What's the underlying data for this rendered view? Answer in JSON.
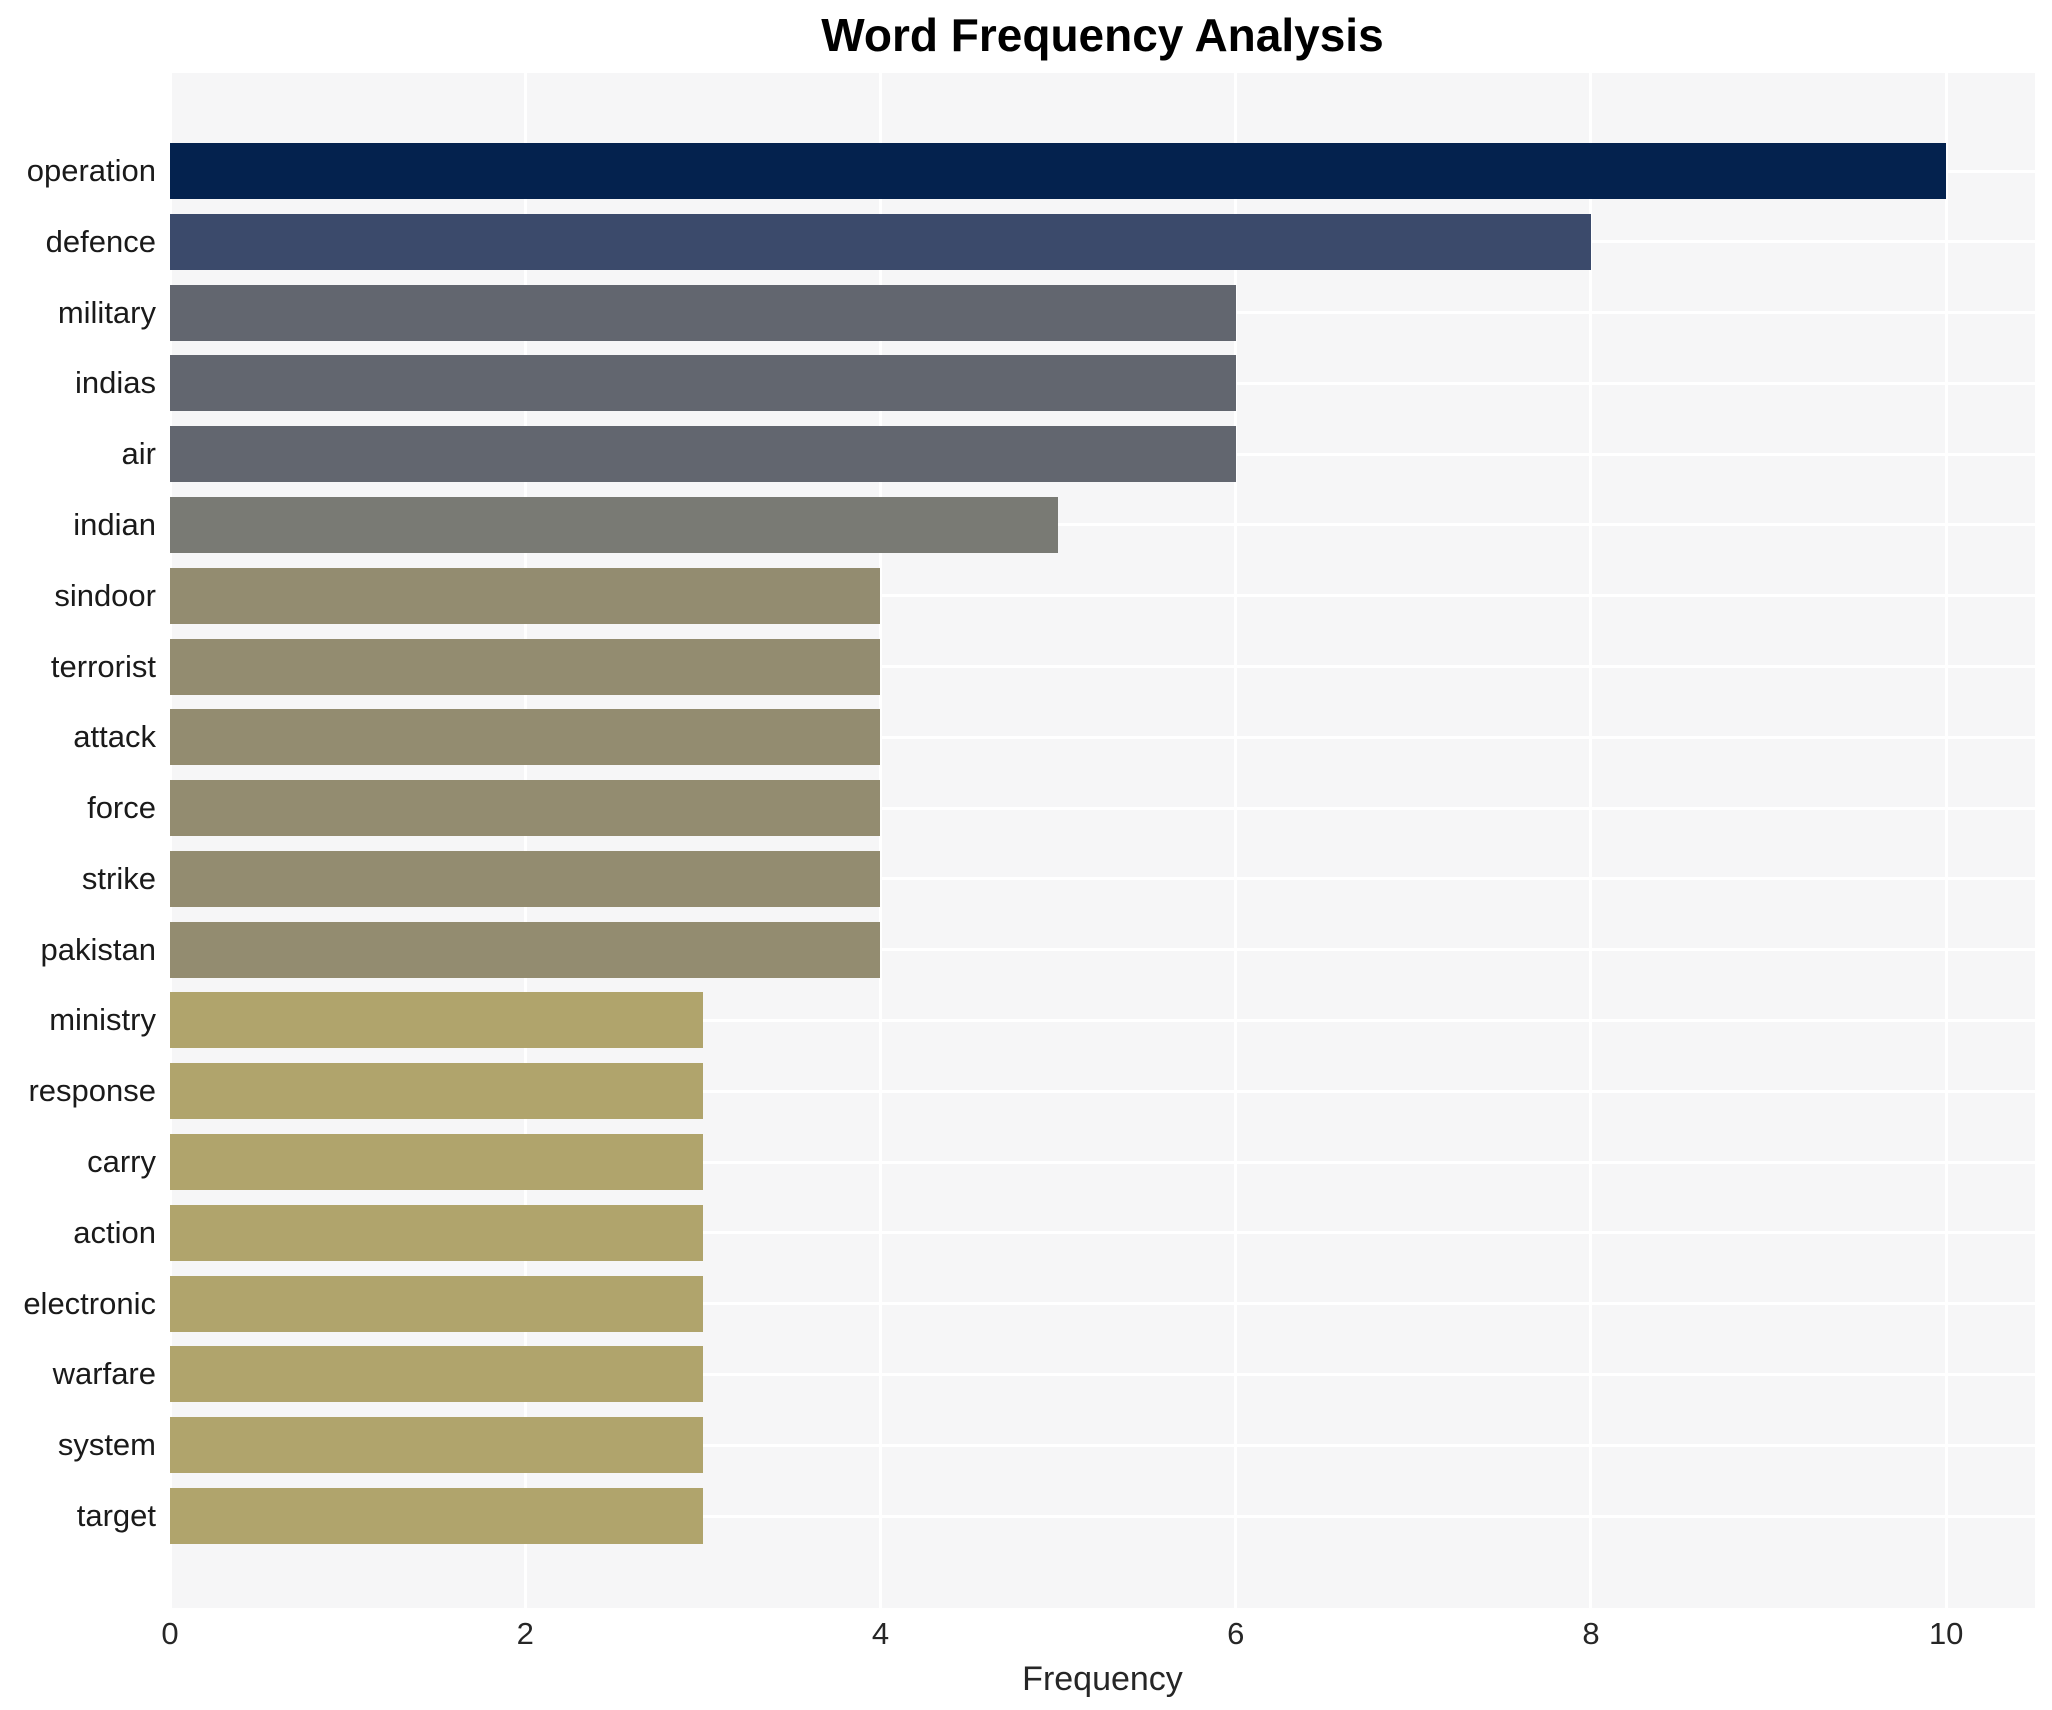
{
  "chart_data": {
    "type": "bar",
    "orientation": "horizontal",
    "title": "Word Frequency Analysis",
    "xlabel": "Frequency",
    "ylabel": "",
    "categories": [
      "operation",
      "defence",
      "military",
      "indias",
      "air",
      "indian",
      "sindoor",
      "terrorist",
      "attack",
      "force",
      "strike",
      "pakistan",
      "ministry",
      "response",
      "carry",
      "action",
      "electronic",
      "warfare",
      "system",
      "target"
    ],
    "values": [
      10,
      8,
      6,
      6,
      6,
      5,
      4,
      4,
      4,
      4,
      4,
      4,
      3,
      3,
      3,
      3,
      3,
      3,
      3,
      3
    ],
    "bar_colors": [
      "#04224e",
      "#3b4a6b",
      "#62666f",
      "#62666f",
      "#62666f",
      "#797a74",
      "#938c70",
      "#938c70",
      "#938c70",
      "#938c70",
      "#938c70",
      "#938c70",
      "#b0a46c",
      "#b0a46c",
      "#b0a46c",
      "#b0a46c",
      "#b0a46c",
      "#b0a46c",
      "#b0a46c",
      "#b0a46c"
    ],
    "xlim": [
      0,
      10.5
    ],
    "x_ticks": [
      0,
      2,
      4,
      6,
      8,
      10
    ],
    "grid": true,
    "legend_position": "none",
    "plot_background": "#f6f6f7",
    "grid_color": "#ffffff",
    "title_color": "#000000",
    "tick_label_color": "#262626"
  }
}
